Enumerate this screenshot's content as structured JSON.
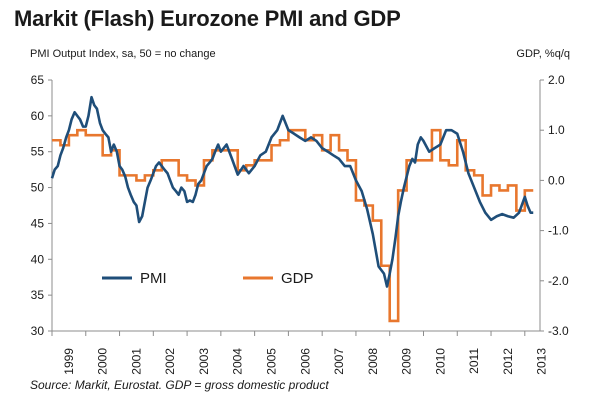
{
  "title": "Markit (Flash) Eurozone PMI and GDP",
  "source": "Source: Markit, Eurostat. GDP = gross domestic product",
  "chart_data": {
    "type": "line",
    "left_axis_label": "PMI Output Index, sa, 50 = no change",
    "right_axis_label": "GDP, %q/q",
    "left_ylim": [
      30,
      65
    ],
    "right_ylim": [
      -3.0,
      2.0
    ],
    "left_ticks": [
      "30",
      "35",
      "40",
      "45",
      "50",
      "55",
      "60",
      "65"
    ],
    "right_ticks": [
      "-3.0",
      "-2.0",
      "-1.0",
      "0.0",
      "1.0",
      "2.0"
    ],
    "x_ticks": [
      "1999",
      "2000",
      "2001",
      "2002",
      "2003",
      "2004",
      "2005",
      "2006",
      "2007",
      "2008",
      "2009",
      "2010",
      "2011",
      "2012",
      "2013"
    ],
    "xlim": [
      1999.0,
      2013.45
    ],
    "grid": false,
    "series": [
      {
        "name": "PMI",
        "axis": "left",
        "color": "#1f4e79",
        "x": [
          1999.0,
          1999.08,
          1999.17,
          1999.25,
          1999.33,
          1999.42,
          1999.5,
          1999.58,
          1999.67,
          1999.75,
          1999.83,
          1999.92,
          2000.0,
          2000.08,
          2000.17,
          2000.25,
          2000.33,
          2000.42,
          2000.5,
          2000.58,
          2000.67,
          2000.75,
          2000.83,
          2000.92,
          2001.0,
          2001.08,
          2001.17,
          2001.25,
          2001.33,
          2001.42,
          2001.5,
          2001.58,
          2001.67,
          2001.75,
          2001.83,
          2001.92,
          2002.0,
          2002.08,
          2002.17,
          2002.25,
          2002.33,
          2002.42,
          2002.5,
          2002.58,
          2002.67,
          2002.75,
          2002.83,
          2002.92,
          2003.0,
          2003.08,
          2003.17,
          2003.25,
          2003.33,
          2003.42,
          2003.5,
          2003.58,
          2003.67,
          2003.75,
          2003.83,
          2003.92,
          2004.0,
          2004.17,
          2004.33,
          2004.5,
          2004.67,
          2004.83,
          2005.0,
          2005.17,
          2005.33,
          2005.5,
          2005.67,
          2005.83,
          2006.0,
          2006.17,
          2006.33,
          2006.5,
          2006.67,
          2006.83,
          2007.0,
          2007.17,
          2007.33,
          2007.5,
          2007.67,
          2007.83,
          2008.0,
          2008.17,
          2008.33,
          2008.5,
          2008.67,
          2008.83,
          2008.92,
          2009.0,
          2009.08,
          2009.17,
          2009.25,
          2009.33,
          2009.42,
          2009.5,
          2009.58,
          2009.67,
          2009.75,
          2009.83,
          2009.92,
          2010.0,
          2010.17,
          2010.33,
          2010.5,
          2010.67,
          2010.83,
          2011.0,
          2011.17,
          2011.33,
          2011.5,
          2011.67,
          2011.83,
          2012.0,
          2012.17,
          2012.33,
          2012.5,
          2012.67,
          2012.83,
          2013.0,
          2013.08,
          2013.17,
          2013.25
        ],
        "y": [
          51.3,
          52.5,
          53.0,
          54.5,
          55.5,
          57.0,
          58.0,
          59.5,
          60.5,
          60.0,
          59.5,
          58.5,
          58.5,
          60.0,
          62.6,
          61.5,
          61.0,
          59.0,
          58.0,
          57.5,
          57.0,
          55.0,
          56.0,
          55.0,
          53.0,
          52.5,
          51.5,
          50.0,
          49.0,
          48.0,
          47.5,
          45.2,
          46.0,
          48.0,
          50.0,
          51.0,
          52.0,
          53.0,
          53.5,
          53.0,
          52.5,
          52.0,
          51.0,
          50.0,
          49.5,
          49.0,
          50.0,
          49.5,
          48.0,
          48.2,
          48.0,
          49.0,
          50.5,
          51.0,
          52.0,
          53.0,
          53.5,
          54.0,
          55.0,
          56.0,
          55.0,
          56.0,
          54.0,
          51.8,
          53.0,
          52.0,
          53.0,
          54.5,
          55.0,
          57.0,
          58.0,
          60.0,
          58.0,
          57.5,
          57.0,
          56.5,
          57.0,
          56.5,
          55.5,
          55.0,
          54.5,
          54.0,
          53.0,
          53.0,
          51.0,
          49.5,
          47.0,
          43.5,
          39.0,
          38.0,
          36.2,
          38.0,
          40.0,
          43.0,
          46.0,
          48.0,
          50.0,
          51.5,
          53.0,
          54.0,
          53.5,
          56.0,
          57.0,
          56.5,
          55.0,
          55.5,
          56.0,
          58.0,
          58.0,
          57.5,
          55.0,
          52.0,
          50.0,
          48.0,
          46.5,
          45.5,
          46.0,
          46.3,
          46.0,
          45.8,
          46.5,
          48.7,
          47.5,
          46.5,
          46.5
        ]
      },
      {
        "name": "GDP",
        "axis": "right",
        "color": "#e8772e",
        "x": [
          1999.0,
          1999.25,
          1999.5,
          1999.75,
          2000.0,
          2000.25,
          2000.5,
          2000.75,
          2001.0,
          2001.25,
          2001.5,
          2001.75,
          2002.0,
          2002.25,
          2002.5,
          2002.75,
          2003.0,
          2003.25,
          2003.5,
          2003.75,
          2004.0,
          2004.25,
          2004.5,
          2004.75,
          2005.0,
          2005.25,
          2005.5,
          2005.75,
          2006.0,
          2006.25,
          2006.5,
          2006.75,
          2007.0,
          2007.25,
          2007.5,
          2007.75,
          2008.0,
          2008.25,
          2008.5,
          2008.75,
          2009.0,
          2009.25,
          2009.5,
          2009.75,
          2010.0,
          2010.25,
          2010.5,
          2010.75,
          2011.0,
          2011.25,
          2011.5,
          2011.75,
          2012.0,
          2012.25,
          2012.5,
          2012.75,
          2013.0
        ],
        "y": [
          0.8,
          0.7,
          0.9,
          1.0,
          0.9,
          0.9,
          0.5,
          0.6,
          0.1,
          0.1,
          0.0,
          0.1,
          0.2,
          0.4,
          0.4,
          0.1,
          0.0,
          -0.1,
          0.4,
          0.6,
          0.6,
          0.6,
          0.2,
          0.3,
          0.4,
          0.4,
          0.7,
          0.8,
          1.0,
          1.0,
          0.8,
          0.9,
          0.6,
          0.9,
          0.6,
          0.4,
          -0.4,
          -0.5,
          -0.8,
          -1.7,
          -2.8,
          -0.2,
          0.4,
          0.4,
          0.4,
          1.0,
          0.4,
          0.3,
          0.8,
          0.2,
          0.1,
          -0.3,
          -0.1,
          -0.2,
          -0.1,
          -0.6,
          -0.2
        ]
      }
    ],
    "legend": {
      "placement": "lower-left",
      "entries": [
        "PMI",
        "GDP"
      ]
    }
  }
}
